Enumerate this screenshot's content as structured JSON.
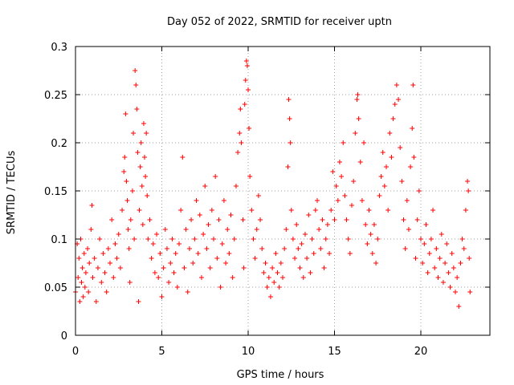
{
  "chart_data": {
    "type": "scatter",
    "title": "Day 052 of 2022, SRMTID for receiver uptn",
    "xlabel": "GPS time / hours",
    "ylabel": "SRMTID / TECUs",
    "xlim": [
      0,
      24
    ],
    "ylim": [
      0,
      0.3
    ],
    "x_ticks": [
      0,
      5,
      10,
      15,
      20
    ],
    "x_tick_labels": [
      "0",
      "5",
      "10",
      "15",
      "20"
    ],
    "y_ticks": [
      0,
      0.05,
      0.1,
      0.15,
      0.2,
      0.25,
      0.3
    ],
    "y_tick_labels": [
      "0",
      "0.05",
      "0.1",
      "0.15",
      "0.2",
      "0.25",
      "0.3"
    ],
    "grid": true,
    "marker": "+",
    "series": [
      {
        "name": "SRMTID",
        "color": "#ff0000",
        "points": [
          [
            0.0,
            0.045
          ],
          [
            0.1,
            0.095
          ],
          [
            0.15,
            0.06
          ],
          [
            0.2,
            0.08
          ],
          [
            0.25,
            0.035
          ],
          [
            0.3,
            0.1
          ],
          [
            0.35,
            0.055
          ],
          [
            0.4,
            0.07
          ],
          [
            0.45,
            0.04
          ],
          [
            0.5,
            0.085
          ],
          [
            0.55,
            0.05
          ],
          [
            0.6,
            0.065
          ],
          [
            0.7,
            0.09
          ],
          [
            0.75,
            0.045
          ],
          [
            0.8,
            0.075
          ],
          [
            0.9,
            0.11
          ],
          [
            0.95,
            0.135
          ],
          [
            1.0,
            0.06
          ],
          [
            1.1,
            0.08
          ],
          [
            1.2,
            0.035
          ],
          [
            1.3,
            0.07
          ],
          [
            1.4,
            0.1
          ],
          [
            1.5,
            0.055
          ],
          [
            1.6,
            0.085
          ],
          [
            1.7,
            0.065
          ],
          [
            1.8,
            0.045
          ],
          [
            1.9,
            0.09
          ],
          [
            2.0,
            0.075
          ],
          [
            2.1,
            0.12
          ],
          [
            2.2,
            0.06
          ],
          [
            2.3,
            0.095
          ],
          [
            2.4,
            0.08
          ],
          [
            2.5,
            0.105
          ],
          [
            2.6,
            0.07
          ],
          [
            2.7,
            0.13
          ],
          [
            2.8,
            0.17
          ],
          [
            2.85,
            0.185
          ],
          [
            2.9,
            0.23
          ],
          [
            2.95,
            0.16
          ],
          [
            3.0,
            0.14
          ],
          [
            3.05,
            0.11
          ],
          [
            3.1,
            0.09
          ],
          [
            3.15,
            0.055
          ],
          [
            3.2,
            0.12
          ],
          [
            3.3,
            0.15
          ],
          [
            3.35,
            0.21
          ],
          [
            3.4,
            0.1
          ],
          [
            3.45,
            0.275
          ],
          [
            3.5,
            0.26
          ],
          [
            3.55,
            0.235
          ],
          [
            3.6,
            0.19
          ],
          [
            3.65,
            0.035
          ],
          [
            3.7,
            0.13
          ],
          [
            3.75,
            0.175
          ],
          [
            3.8,
            0.2
          ],
          [
            3.85,
            0.155
          ],
          [
            3.9,
            0.115
          ],
          [
            3.95,
            0.22
          ],
          [
            4.0,
            0.185
          ],
          [
            4.05,
            0.165
          ],
          [
            4.1,
            0.21
          ],
          [
            4.15,
            0.145
          ],
          [
            4.2,
            0.1
          ],
          [
            4.3,
            0.12
          ],
          [
            4.4,
            0.08
          ],
          [
            4.5,
            0.095
          ],
          [
            4.6,
            0.065
          ],
          [
            4.7,
            0.105
          ],
          [
            4.8,
            0.06
          ],
          [
            4.9,
            0.085
          ],
          [
            5.0,
            0.04
          ],
          [
            5.1,
            0.07
          ],
          [
            5.2,
            0.11
          ],
          [
            5.3,
            0.09
          ],
          [
            5.4,
            0.055
          ],
          [
            5.5,
            0.075
          ],
          [
            5.6,
            0.1
          ],
          [
            5.7,
            0.065
          ],
          [
            5.8,
            0.085
          ],
          [
            5.9,
            0.05
          ],
          [
            6.0,
            0.095
          ],
          [
            6.1,
            0.13
          ],
          [
            6.2,
            0.185
          ],
          [
            6.3,
            0.07
          ],
          [
            6.4,
            0.11
          ],
          [
            6.5,
            0.045
          ],
          [
            6.6,
            0.09
          ],
          [
            6.7,
            0.12
          ],
          [
            6.8,
            0.075
          ],
          [
            6.9,
            0.1
          ],
          [
            7.0,
            0.14
          ],
          [
            7.1,
            0.085
          ],
          [
            7.2,
            0.125
          ],
          [
            7.3,
            0.06
          ],
          [
            7.4,
            0.105
          ],
          [
            7.5,
            0.155
          ],
          [
            7.6,
            0.09
          ],
          [
            7.7,
            0.115
          ],
          [
            7.8,
            0.07
          ],
          [
            7.9,
            0.13
          ],
          [
            8.0,
            0.1
          ],
          [
            8.1,
            0.165
          ],
          [
            8.2,
            0.08
          ],
          [
            8.3,
            0.12
          ],
          [
            8.4,
            0.05
          ],
          [
            8.5,
            0.095
          ],
          [
            8.6,
            0.14
          ],
          [
            8.7,
            0.075
          ],
          [
            8.8,
            0.11
          ],
          [
            8.9,
            0.085
          ],
          [
            9.0,
            0.125
          ],
          [
            9.1,
            0.06
          ],
          [
            9.2,
            0.1
          ],
          [
            9.3,
            0.155
          ],
          [
            9.4,
            0.19
          ],
          [
            9.5,
            0.21
          ],
          [
            9.55,
            0.235
          ],
          [
            9.6,
            0.2
          ],
          [
            9.7,
            0.12
          ],
          [
            9.75,
            0.07
          ],
          [
            9.8,
            0.24
          ],
          [
            9.85,
            0.265
          ],
          [
            9.9,
            0.285
          ],
          [
            9.95,
            0.28
          ],
          [
            10.0,
            0.255
          ],
          [
            10.05,
            0.215
          ],
          [
            10.1,
            0.165
          ],
          [
            10.2,
            0.13
          ],
          [
            10.3,
            0.1
          ],
          [
            10.4,
            0.08
          ],
          [
            10.5,
            0.11
          ],
          [
            10.6,
            0.145
          ],
          [
            10.7,
            0.12
          ],
          [
            10.8,
            0.09
          ],
          [
            10.9,
            0.065
          ],
          [
            11.0,
            0.075
          ],
          [
            11.1,
            0.05
          ],
          [
            11.2,
            0.06
          ],
          [
            11.3,
            0.04
          ],
          [
            11.4,
            0.07
          ],
          [
            11.5,
            0.055
          ],
          [
            11.6,
            0.085
          ],
          [
            11.7,
            0.065
          ],
          [
            11.8,
            0.05
          ],
          [
            11.9,
            0.075
          ],
          [
            12.0,
            0.06
          ],
          [
            12.1,
            0.09
          ],
          [
            12.2,
            0.11
          ],
          [
            12.3,
            0.175
          ],
          [
            12.35,
            0.245
          ],
          [
            12.4,
            0.225
          ],
          [
            12.45,
            0.2
          ],
          [
            12.5,
            0.13
          ],
          [
            12.6,
            0.1
          ],
          [
            12.7,
            0.08
          ],
          [
            12.8,
            0.115
          ],
          [
            12.9,
            0.09
          ],
          [
            13.0,
            0.07
          ],
          [
            13.1,
            0.095
          ],
          [
            13.2,
            0.06
          ],
          [
            13.3,
            0.105
          ],
          [
            13.4,
            0.08
          ],
          [
            13.5,
            0.125
          ],
          [
            13.6,
            0.065
          ],
          [
            13.7,
            0.1
          ],
          [
            13.8,
            0.085
          ],
          [
            13.9,
            0.13
          ],
          [
            14.0,
            0.14
          ],
          [
            14.1,
            0.11
          ],
          [
            14.2,
            0.09
          ],
          [
            14.3,
            0.12
          ],
          [
            14.4,
            0.07
          ],
          [
            14.5,
            0.1
          ],
          [
            14.6,
            0.115
          ],
          [
            14.7,
            0.085
          ],
          [
            14.8,
            0.13
          ],
          [
            14.9,
            0.17
          ],
          [
            15.0,
            0.12
          ],
          [
            15.1,
            0.155
          ],
          [
            15.2,
            0.14
          ],
          [
            15.3,
            0.18
          ],
          [
            15.4,
            0.165
          ],
          [
            15.5,
            0.2
          ],
          [
            15.6,
            0.145
          ],
          [
            15.7,
            0.12
          ],
          [
            15.8,
            0.1
          ],
          [
            15.9,
            0.085
          ],
          [
            16.0,
            0.135
          ],
          [
            16.1,
            0.16
          ],
          [
            16.2,
            0.21
          ],
          [
            16.3,
            0.245
          ],
          [
            16.35,
            0.25
          ],
          [
            16.4,
            0.225
          ],
          [
            16.5,
            0.18
          ],
          [
            16.6,
            0.14
          ],
          [
            16.7,
            0.2
          ],
          [
            16.8,
            0.115
          ],
          [
            16.9,
            0.095
          ],
          [
            17.0,
            0.13
          ],
          [
            17.1,
            0.105
          ],
          [
            17.2,
            0.085
          ],
          [
            17.3,
            0.115
          ],
          [
            17.4,
            0.075
          ],
          [
            17.5,
            0.1
          ],
          [
            17.6,
            0.145
          ],
          [
            17.7,
            0.165
          ],
          [
            17.8,
            0.19
          ],
          [
            17.9,
            0.155
          ],
          [
            18.0,
            0.175
          ],
          [
            18.1,
            0.13
          ],
          [
            18.2,
            0.21
          ],
          [
            18.3,
            0.185
          ],
          [
            18.4,
            0.225
          ],
          [
            18.5,
            0.24
          ],
          [
            18.6,
            0.26
          ],
          [
            18.7,
            0.245
          ],
          [
            18.8,
            0.195
          ],
          [
            18.9,
            0.16
          ],
          [
            19.0,
            0.12
          ],
          [
            19.1,
            0.09
          ],
          [
            19.2,
            0.14
          ],
          [
            19.3,
            0.11
          ],
          [
            19.4,
            0.175
          ],
          [
            19.5,
            0.215
          ],
          [
            19.55,
            0.26
          ],
          [
            19.6,
            0.185
          ],
          [
            19.7,
            0.08
          ],
          [
            19.8,
            0.12
          ],
          [
            19.9,
            0.15
          ],
          [
            20.0,
            0.1
          ],
          [
            20.1,
            0.075
          ],
          [
            20.2,
            0.095
          ],
          [
            20.3,
            0.115
          ],
          [
            20.4,
            0.065
          ],
          [
            20.5,
            0.085
          ],
          [
            20.6,
            0.1
          ],
          [
            20.7,
            0.13
          ],
          [
            20.8,
            0.07
          ],
          [
            20.9,
            0.09
          ],
          [
            21.0,
            0.06
          ],
          [
            21.1,
            0.08
          ],
          [
            21.2,
            0.105
          ],
          [
            21.3,
            0.055
          ],
          [
            21.4,
            0.075
          ],
          [
            21.5,
            0.095
          ],
          [
            21.6,
            0.065
          ],
          [
            21.7,
            0.05
          ],
          [
            21.8,
            0.085
          ],
          [
            21.9,
            0.07
          ],
          [
            22.0,
            0.045
          ],
          [
            22.1,
            0.06
          ],
          [
            22.2,
            0.03
          ],
          [
            22.3,
            0.075
          ],
          [
            22.4,
            0.1
          ],
          [
            22.5,
            0.09
          ],
          [
            22.6,
            0.13
          ],
          [
            22.7,
            0.16
          ],
          [
            22.75,
            0.15
          ],
          [
            22.8,
            0.08
          ],
          [
            22.85,
            0.045
          ]
        ]
      }
    ]
  }
}
